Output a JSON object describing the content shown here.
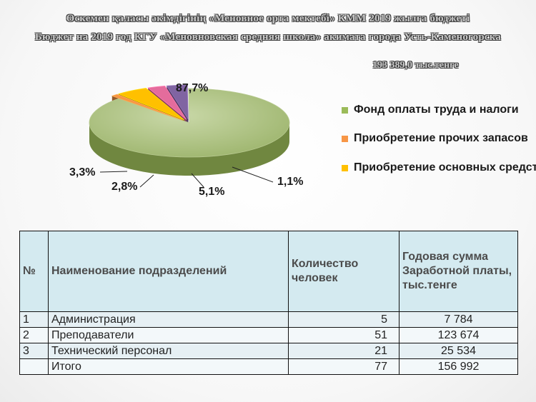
{
  "header": {
    "title_kz": "Өскемен қаласы әкімдігінің «Меновное орта мектебі» КММ 2019 жылға бюджеті",
    "title_ru": "Бюджет на 2019 год КГУ «Меновновская средняя школа» акимата города Усть-Каменогорска",
    "total": "193 389,0 тыс.тенге"
  },
  "chart_data": {
    "type": "pie",
    "style": "3d-exploded",
    "slices": [
      {
        "label": "Фонд оплаты труда и налоги",
        "value": 87.7,
        "display": "87,7%",
        "color": "#9bbb59"
      },
      {
        "label": "Приобретение прочих запасов",
        "value": 1.1,
        "display": "1,1%",
        "color": "#f79646"
      },
      {
        "label": "Приобретение основных средст",
        "value": 5.1,
        "display": "5,1%",
        "color": "#ffc000"
      },
      {
        "label": "",
        "value": 2.8,
        "display": "2,8%",
        "color": "#e46c9c"
      },
      {
        "label": "",
        "value": 3.3,
        "display": "3,3%",
        "color": "#8064a2"
      }
    ],
    "legend": [
      {
        "label": "Фонд оплаты труда и налоги",
        "color": "#9bbb59"
      },
      {
        "label": "Приобретение прочих запасов",
        "color": "#f79646"
      },
      {
        "label": "Приобретение основных средст",
        "color": "#ffc000"
      }
    ],
    "legend_position": "right"
  },
  "table": {
    "columns": [
      "№",
      "Наименование подразделений",
      "Количество человек",
      "Годовая сумма Заработной платы, тыс.тенге"
    ],
    "rows": [
      [
        "1",
        "Администрация",
        "5",
        "7 784"
      ],
      [
        "2",
        "Преподаватели",
        "51",
        "123 674"
      ],
      [
        "3",
        "Технический персонал",
        "21",
        "25 534"
      ],
      [
        "",
        "Итого",
        "77",
        "156 992"
      ]
    ]
  }
}
